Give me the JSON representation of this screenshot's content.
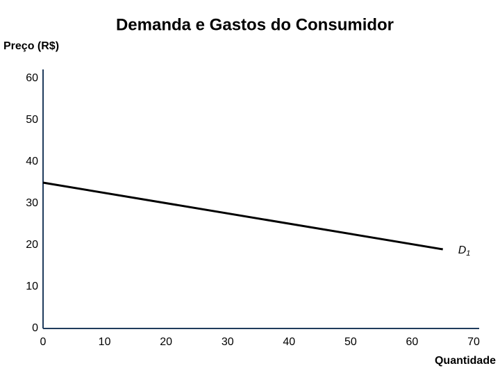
{
  "chart_data": {
    "type": "line",
    "title": "Demanda e Gastos do Consumidor",
    "y_label": "Preço (R$)",
    "x_label": "Quantidade",
    "series": [
      {
        "name": "D",
        "name_subscript": "1",
        "color": "#000000",
        "x": [
          0,
          65
        ],
        "values": [
          35,
          19
        ]
      }
    ],
    "xlim": [
      0,
      70
    ],
    "xticks": [
      0,
      10,
      20,
      30,
      40,
      50,
      60,
      70
    ],
    "ylim": [
      0,
      60
    ],
    "yticks": [
      0,
      10,
      20,
      30,
      40,
      50,
      60
    ],
    "grid": false
  }
}
